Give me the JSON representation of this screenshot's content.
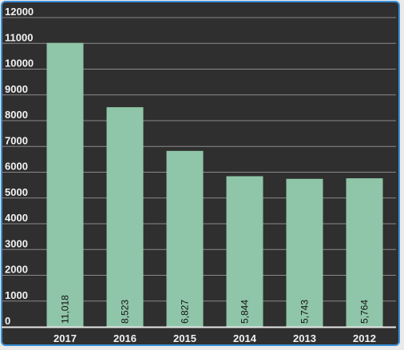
{
  "chart_data": {
    "type": "bar",
    "categories": [
      "2017",
      "2016",
      "2015",
      "2014",
      "2013",
      "2012"
    ],
    "values": [
      11018,
      8523,
      6827,
      5844,
      5743,
      5764
    ],
    "value_labels": [
      "11,018",
      "8,523",
      "6,827",
      "5,844",
      "5,743",
      "5,764"
    ],
    "yticks": [
      "0",
      "1000",
      "2000",
      "3000",
      "4000",
      "5000",
      "6000",
      "7000",
      "8000",
      "9000",
      "10000",
      "11000",
      "12000"
    ],
    "ylim": [
      0,
      12000
    ],
    "title": "",
    "xlabel": "",
    "ylabel": "",
    "grid": true,
    "colors": {
      "bar": "#8fc5a8",
      "background": "#2f2f2f",
      "grid": "#8a8a8a",
      "frame_border": "#3a8fd8",
      "text": "#f2f2f2",
      "value_text": "#111111"
    }
  }
}
